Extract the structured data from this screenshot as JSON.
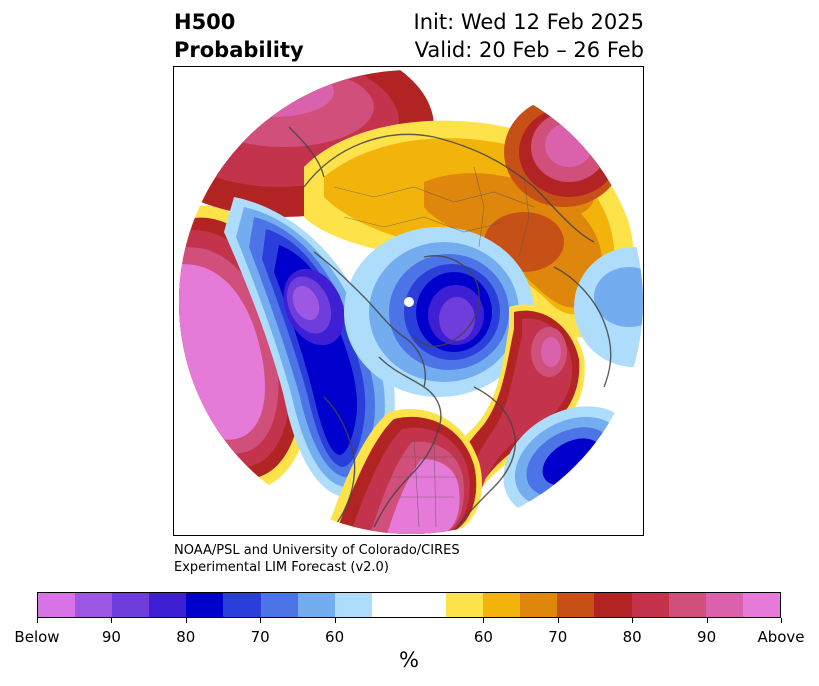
{
  "title": {
    "left_line1": "H500",
    "left_line2": "Probability",
    "right_line1": "Init: Wed 12 Feb 2025",
    "right_line2": "Valid: 20 Feb – 26 Feb"
  },
  "credit": {
    "line1": "NOAA/PSL and University of Colorado/CIRES",
    "line2": "Experimental LIM Forecast (v2.0)"
  },
  "colorbar": {
    "unit": "%",
    "colors": [
      "#d873e6",
      "#9d58e3",
      "#6f3ddc",
      "#3f1fd4",
      "#0000cc",
      "#2a3fd9",
      "#4d74e6",
      "#74acf0",
      "#aedcfb",
      "#ffffff",
      "#ffffff",
      "#fde24a",
      "#f2b40b",
      "#df870c",
      "#c75017",
      "#b22424",
      "#c3344c",
      "#d04f7b",
      "#da62ac",
      "#e57ad9"
    ],
    "labels": [
      "Below",
      "90",
      "80",
      "70",
      "60",
      "60",
      "70",
      "80",
      "90",
      "Above"
    ]
  },
  "map": {
    "projection": "north-polar-stereographic",
    "features": [
      "above-normal-ridge-north-pacific",
      "below-normal-trough-western-north-america",
      "below-normal-trough-eastern-canada",
      "above-normal-ridge-eastern-united-states",
      "above-normal-eurasia",
      "above-normal-north-atlantic",
      "below-normal-europe"
    ]
  }
}
